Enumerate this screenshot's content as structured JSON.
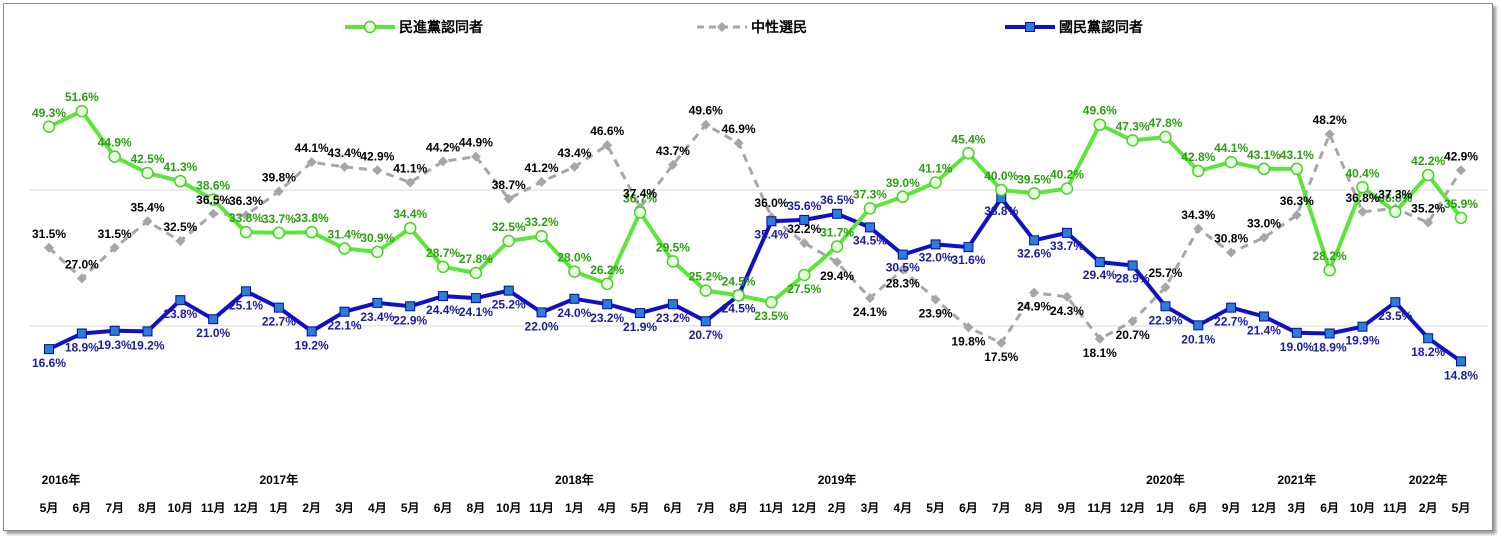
{
  "chart_data": {
    "type": "line",
    "title": "",
    "xlabel": "",
    "ylabel": "",
    "ylim": [
      0,
      60
    ],
    "grid": "horizontal",
    "legend_position": "top",
    "months": [
      "5月",
      "6月",
      "7月",
      "8月",
      "10月",
      "11月",
      "12月",
      "1月",
      "2月",
      "3月",
      "4月",
      "5月",
      "6月",
      "8月",
      "10月",
      "11月",
      "1月",
      "4月",
      "5月",
      "6月",
      "7月",
      "8月",
      "11月",
      "12月",
      "2月",
      "3月",
      "4月",
      "5月",
      "6月",
      "7月",
      "8月",
      "9月",
      "11月",
      "12月",
      "1月",
      "6月",
      "9月",
      "12月",
      "3月",
      "6月",
      "10月",
      "11月",
      "2月",
      "5月"
    ],
    "years": [
      {
        "label": "2016年",
        "index": 0
      },
      {
        "label": "2017年",
        "index": 7
      },
      {
        "label": "2018年",
        "index": 16
      },
      {
        "label": "2019年",
        "index": 24
      },
      {
        "label": "2020年",
        "index": 34
      },
      {
        "label": "2021年",
        "index": 38
      },
      {
        "label": "2022年",
        "index": 42
      }
    ],
    "series": [
      {
        "name": "民進黨認同者",
        "color": "#5ce63a",
        "style": "solid-circle",
        "values": [
          49.3,
          51.6,
          44.9,
          42.5,
          41.3,
          38.6,
          33.8,
          33.7,
          33.8,
          31.4,
          30.9,
          34.4,
          28.7,
          27.8,
          32.5,
          33.2,
          28.0,
          26.2,
          36.7,
          29.5,
          25.2,
          24.5,
          23.5,
          27.5,
          31.7,
          37.3,
          39.0,
          41.1,
          45.4,
          40.0,
          39.5,
          40.2,
          49.6,
          47.3,
          47.8,
          42.8,
          44.1,
          43.1,
          43.1,
          28.2,
          40.4,
          36.8,
          42.2,
          35.9
        ]
      },
      {
        "name": "中性選民",
        "color": "#a6a6a6",
        "style": "dashed-diamond",
        "values": [
          31.5,
          27.0,
          31.5,
          35.4,
          32.5,
          36.5,
          36.3,
          39.8,
          44.1,
          43.4,
          42.9,
          41.1,
          44.2,
          44.9,
          38.7,
          41.2,
          43.4,
          46.6,
          37.4,
          43.7,
          49.6,
          46.9,
          36.0,
          32.2,
          29.4,
          24.1,
          28.3,
          23.9,
          19.8,
          17.5,
          24.9,
          24.3,
          18.1,
          20.7,
          25.7,
          34.3,
          30.8,
          33.0,
          36.3,
          48.2,
          36.8,
          37.3,
          35.2,
          42.9
        ]
      },
      {
        "name": "國民黨認同者",
        "color": "#1010c8",
        "style": "solid-square",
        "values": [
          16.6,
          18.9,
          19.3,
          19.2,
          23.8,
          21.0,
          25.1,
          22.7,
          19.2,
          22.1,
          23.4,
          22.9,
          24.4,
          24.1,
          25.2,
          22.0,
          24.0,
          23.2,
          21.9,
          23.2,
          20.7,
          24.5,
          35.4,
          35.6,
          36.5,
          34.5,
          30.5,
          32.0,
          31.6,
          38.8,
          32.6,
          33.7,
          29.4,
          28.9,
          22.9,
          20.1,
          22.7,
          21.4,
          19.0,
          18.9,
          19.9,
          23.5,
          18.2,
          14.8
        ]
      }
    ]
  }
}
